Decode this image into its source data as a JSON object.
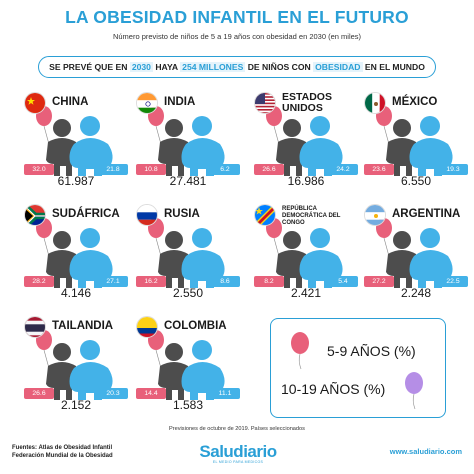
{
  "header": {
    "title": "LA OBESIDAD INFANTIL EN EL FUTURO",
    "subtitle": "Número previsto de niños de 5 a 19 años con obesidad en 2030 (en miles)"
  },
  "banner": {
    "part1": "SE PREVÉ QUE EN ",
    "year": "2030",
    "part2": " HAYA ",
    "millions": "254 MILLONES",
    "part3": " DE NIÑOS CON ",
    "obesity": "OBESIDAD",
    "part4": " EN EL MUNDO"
  },
  "colors": {
    "accent": "#2a9fd6",
    "pink": "#e8607a",
    "blue": "#43b2e8",
    "gray": "#4d4d4d"
  },
  "countries": [
    {
      "name": "CHINA",
      "flag": "china-flag-icon",
      "age_5_9": "32.0",
      "age_10_19": "21.8",
      "total": "61.987"
    },
    {
      "name": "INDIA",
      "flag": "india-flag-icon",
      "age_5_9": "10.8",
      "age_10_19": "6.2",
      "total": "27.481"
    },
    {
      "name": "ESTADOS UNIDOS",
      "flag": "usa-flag-icon",
      "age_5_9": "26.6",
      "age_10_19": "24.2",
      "total": "16.986"
    },
    {
      "name": "MÉXICO",
      "flag": "mexico-flag-icon",
      "age_5_9": "23.6",
      "age_10_19": "19.3",
      "total": "6.550"
    },
    {
      "name": "SUDÁFRICA",
      "flag": "south-africa-flag-icon",
      "age_5_9": "28.2",
      "age_10_19": "27.1",
      "total": "4.146"
    },
    {
      "name": "RUSIA",
      "flag": "russia-flag-icon",
      "age_5_9": "16.2",
      "age_10_19": "8.6",
      "total": "2.550"
    },
    {
      "name": "REPÚBLICA DEMOCRÁTICA DEL CONGO",
      "flag": "drc-flag-icon",
      "age_5_9": "8.2",
      "age_10_19": "5.4",
      "total": "2.421"
    },
    {
      "name": "ARGENTINA",
      "flag": "argentina-flag-icon",
      "age_5_9": "27.2",
      "age_10_19": "22.5",
      "total": "2.248"
    },
    {
      "name": "TAILANDIA",
      "flag": "thailand-flag-icon",
      "age_5_9": "26.6",
      "age_10_19": "20.3",
      "total": "2.152"
    },
    {
      "name": "COLOMBIA",
      "flag": "colombia-flag-icon",
      "age_5_9": "14.4",
      "age_10_19": "11.1",
      "total": "1.583"
    }
  ],
  "legend": {
    "age_5_9": "5-9 AÑOS (%)",
    "age_10_19": "10-19 AÑOS (%)"
  },
  "footnote": {
    "line1": "Previsiones de octubre de 2019. Países seleccionados"
  },
  "footer": {
    "sources_line1": "Fuentes: Atlas de Obesidad Infantil",
    "sources_line2": "Federación Mundial de la Obesidad",
    "logo": "Saludiario",
    "logo_sub": "EL MEDIO PARA MEDICOS",
    "url": "www.saludiario.com"
  }
}
